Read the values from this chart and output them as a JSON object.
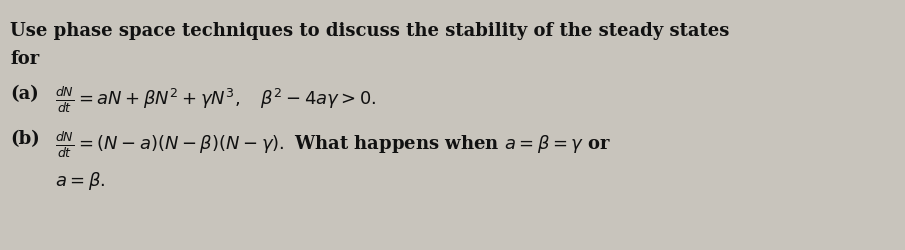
{
  "line1": "Use phase space techniques to discuss the stability of the steady states",
  "line2": "for",
  "part_a_label": "(a)",
  "part_a_eq": "$\\frac{dN}{dt} = aN + \\beta N^2 + \\gamma N^3, \\quad \\beta^2 - 4a\\gamma > 0.$",
  "part_b_label": "(b)",
  "part_b_eq1": "$\\frac{dN}{dt} = (N - a)(N - \\beta)(N - \\gamma).$ What happens when $a = \\beta = \\gamma$ or",
  "part_b_eq2": "$a = \\beta.$",
  "bg_color": "#c8c4bc",
  "text_color": "#111111",
  "fontsize_main": 13.0,
  "fontsize_math": 13.0
}
